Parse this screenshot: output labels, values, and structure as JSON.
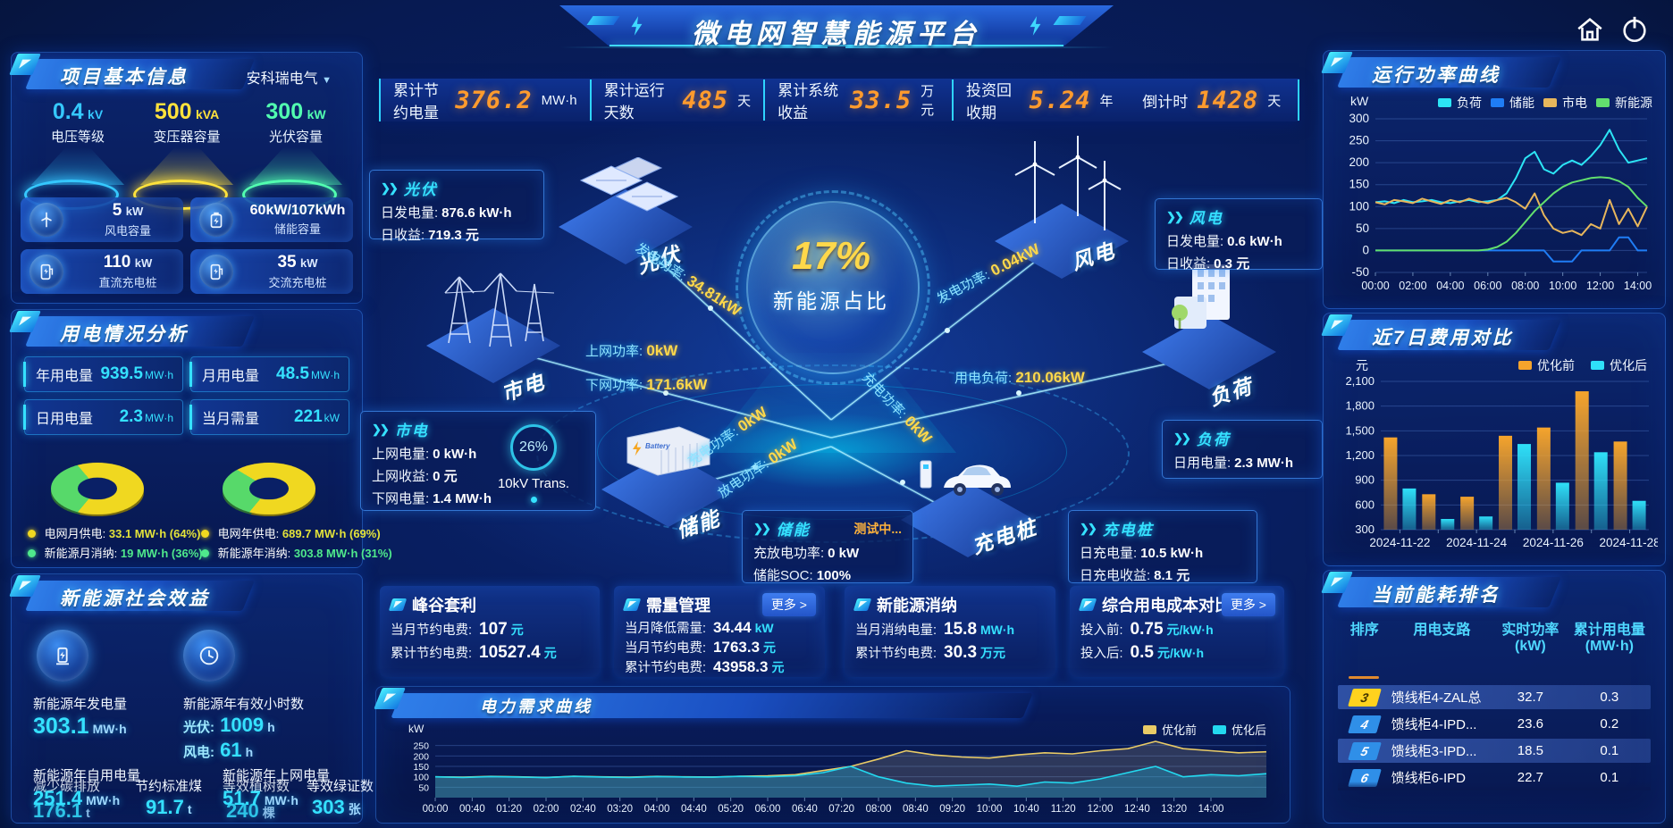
{
  "header": {
    "title": "微电网智慧能源平台"
  },
  "topbar": {
    "items": [
      {
        "label": "累计节约电量",
        "value": "376.2",
        "unit": "MW·h"
      },
      {
        "label": "累计运行天数",
        "value": "485",
        "unit": "天"
      },
      {
        "label": "累计系统收益",
        "value": "33.5",
        "unit": "万元"
      },
      {
        "label": "投资回收期",
        "value": "5.24",
        "unit": "年"
      },
      {
        "label": "倒计时",
        "value": "1428",
        "unit": "天"
      }
    ]
  },
  "project": {
    "title": "项目基本信息",
    "company": "安科瑞电气",
    "gauges": [
      {
        "value": "0.4",
        "unit": "kV",
        "label": "电压等级",
        "color": "#35c8ff"
      },
      {
        "value": "500",
        "unit": "kVA",
        "label": "变压器容量",
        "color": "#ffe23c"
      },
      {
        "value": "300",
        "unit": "kW",
        "label": "光伏容量",
        "color": "#52ffb0"
      }
    ],
    "capacities": [
      {
        "value": "5",
        "unit": "kW",
        "label": "风电容量"
      },
      {
        "value": "60kW/107kWh",
        "unit": "",
        "label": "储能容量"
      },
      {
        "value": "110",
        "unit": "kW",
        "label": "直流充电桩"
      },
      {
        "value": "35",
        "unit": "kW",
        "label": "交流充电桩"
      }
    ]
  },
  "usage": {
    "title": "用电情况分析",
    "stats": [
      {
        "label": "年用电量",
        "value": "939.5",
        "unit": "MW·h"
      },
      {
        "label": "月用电量",
        "value": "48.5",
        "unit": "MW·h"
      },
      {
        "label": "日用电量",
        "value": "2.3",
        "unit": "MW·h"
      },
      {
        "label": "当月需量",
        "value": "221",
        "unit": "kW"
      }
    ],
    "legend": [
      {
        "label": "电网月供电:",
        "value": "33.1 MW·h (64%)"
      },
      {
        "label": "新能源月消纳:",
        "value": "19 MW·h (36%)"
      },
      {
        "label": "电网年供电:",
        "value": "689.7 MW·h (69%)"
      },
      {
        "label": "新能源年消纳:",
        "value": "303.8 MW·h (31%)"
      }
    ]
  },
  "benefit": {
    "title": "新能源社会效益",
    "gen": {
      "label": "新能源年发电量",
      "value": "303.1",
      "unit": "MW·h"
    },
    "hours": {
      "label": "新能源年有效小时数",
      "pv_label": "光伏:",
      "pv_value": "1009",
      "pv_unit": "h",
      "wind_label": "风电:",
      "wind_value": "61",
      "wind_unit": "h"
    },
    "self": {
      "label": "新能源年自用电量",
      "value": "251.4",
      "unit": "MW·h"
    },
    "carbon": {
      "label": "减少碳排放",
      "value": "176.1",
      "unit": "t"
    },
    "coal": {
      "label": "节约标准煤",
      "value": "91.7",
      "unit": "t"
    },
    "feed": {
      "label": "新能源年上网电量",
      "value": "51.7",
      "unit": "MW·h"
    },
    "trees": {
      "label": "等效植树数",
      "value": "240",
      "unit": "棵"
    },
    "certs": {
      "label": "等效绿证数",
      "value": "303",
      "unit": "张"
    }
  },
  "diagram": {
    "core_percent": "17%",
    "core_label": "新能源占比",
    "nodes": {
      "pv": "光伏",
      "grid": "市电",
      "wind": "风电",
      "load": "负荷",
      "ess": "储能",
      "evc": "充电桩"
    },
    "cards": {
      "pv": {
        "title": "光伏",
        "r1_label": "日发电量:",
        "r1_value": "876.6 kW·h",
        "r2_label": "日收益:",
        "r2_value": "719.3 元"
      },
      "wind": {
        "title": "风电",
        "r1_label": "日发电量:",
        "r1_value": "0.6 kW·h",
        "r2_label": "日收益:",
        "r2_value": "0.3 元"
      },
      "grid": {
        "title": "市电",
        "r1_label": "上网电量:",
        "r1_value": "0 kW·h",
        "r2_label": "上网收益:",
        "r2_value": "0 元",
        "r3_label": "下网电量:",
        "r3_value": "1.4 MW·h",
        "trans_percent": "26%",
        "trans_label": "10kV Trans."
      },
      "load": {
        "title": "负荷",
        "r1_label": "日用电量:",
        "r1_value": "2.3 MW·h"
      },
      "ess": {
        "title": "储能",
        "badge": "测试中...",
        "r1_label": "充放电功率:",
        "r1_value": "0 kW",
        "r2_label": "储能SOC:",
        "r2_value": "100%"
      },
      "evc": {
        "title": "充电桩",
        "r1_label": "日充电量:",
        "r1_value": "10.5 kW·h",
        "r2_label": "日充电收益:",
        "r2_value": "8.1 元"
      }
    },
    "flows": {
      "pv_gen": {
        "label": "发电功率:",
        "value": "34.81kW"
      },
      "grid_up": {
        "label": "上网功率:",
        "value": "0kW"
      },
      "grid_down": {
        "label": "下网功率:",
        "value": "171.6kW"
      },
      "wind_gen": {
        "label": "发电功率:",
        "value": "0.04kW"
      },
      "load_use": {
        "label": "用电负荷:",
        "value": "210.06kW"
      },
      "ess_charge": {
        "label": "充电功率:",
        "value": "0kW"
      },
      "ess_discharge": {
        "label": "放电功率:",
        "value": "0kW"
      },
      "evc_charge": {
        "label": "充电功率:",
        "value": "0kW"
      }
    }
  },
  "cards": [
    {
      "title": "峰谷套利",
      "more": "",
      "rows": [
        {
          "label": "当月节约电费:",
          "value": "107",
          "unit": "元"
        },
        {
          "label": "累计节约电费:",
          "value": "10527.4",
          "unit": "元"
        }
      ]
    },
    {
      "title": "需量管理",
      "more": "更多 >",
      "rows": [
        {
          "label": "当月降低需量:",
          "value": "34.44",
          "unit": "kW"
        },
        {
          "label": "当月节约电费:",
          "value": "1763.3",
          "unit": "元"
        },
        {
          "label": "累计节约电费:",
          "value": "43958.3",
          "unit": "元"
        }
      ]
    },
    {
      "title": "新能源消纳",
      "more": "",
      "rows": [
        {
          "label": "当月消纳电量:",
          "value": "15.8",
          "unit": "MW·h"
        },
        {
          "label": "累计节约电费:",
          "value": "30.3",
          "unit": "万元"
        }
      ]
    },
    {
      "title": "综合用电成本对比",
      "more": "更多 >",
      "rows": [
        {
          "label": "投入前:",
          "value": "0.75",
          "unit": "元/kW·h"
        },
        {
          "label": "投入后:",
          "value": "0.5",
          "unit": "元/kW·h"
        }
      ]
    }
  ],
  "panels": {
    "run_power": "运行功率曲线",
    "cost7": "近7日费用对比",
    "ranking": "当前能耗排名",
    "demand": "电力需求曲线"
  },
  "ranking": {
    "headers": {
      "rank": "排序",
      "branch": "用电支路",
      "power_l1": "实时功率",
      "power_l2": "(kW)",
      "energy_l1": "累计用电量",
      "energy_l2": "(MW·h)"
    },
    "rows": [
      {
        "rank": "3",
        "branch": "馈线柜4-ZAL总",
        "power": "32.7",
        "energy": "0.3"
      },
      {
        "rank": "4",
        "branch": "馈线柜4-IPD...",
        "power": "23.6",
        "energy": "0.2"
      },
      {
        "rank": "5",
        "branch": "馈线柜3-IPD...",
        "power": "18.5",
        "energy": "0.1"
      },
      {
        "rank": "6",
        "branch": "馈线柜6-IPD",
        "power": "22.7",
        "energy": "0.1"
      }
    ]
  },
  "chart_data": [
    {
      "id": "run_power",
      "type": "line",
      "title": "运行功率曲线",
      "ylabel": "kW",
      "ylim": [
        -50,
        300
      ],
      "yticks": [
        300,
        250,
        200,
        150,
        100,
        50,
        0,
        -50
      ],
      "x_tick_labels": [
        "00:00",
        "02:00",
        "04:00",
        "06:00",
        "08:00",
        "10:00",
        "12:00",
        "14:00"
      ],
      "legend_position": "top",
      "grid": true,
      "series": [
        {
          "name": "负荷",
          "color": "#2ce5f5",
          "values": [
            110,
            112,
            108,
            115,
            110,
            112,
            115,
            110,
            108,
            112,
            115,
            110,
            112,
            115,
            130,
            165,
            210,
            225,
            185,
            175,
            195,
            205,
            195,
            215,
            240,
            275,
            230,
            200,
            205,
            210
          ]
        },
        {
          "name": "储能",
          "color": "#1f7df5",
          "values": [
            0,
            0,
            0,
            0,
            0,
            0,
            0,
            0,
            0,
            0,
            0,
            0,
            0,
            0,
            0,
            0,
            0,
            0,
            0,
            -25,
            -25,
            -25,
            0,
            0,
            0,
            0,
            30,
            30,
            0,
            0
          ]
        },
        {
          "name": "市电",
          "color": "#e7b65c",
          "values": [
            110,
            105,
            115,
            112,
            108,
            118,
            112,
            106,
            115,
            110,
            118,
            112,
            108,
            115,
            120,
            110,
            95,
            130,
            80,
            50,
            40,
            45,
            35,
            60,
            50,
            115,
            60,
            95,
            55,
            100
          ]
        },
        {
          "name": "新能源",
          "color": "#62df6e",
          "values": [
            0,
            0,
            0,
            0,
            0,
            0,
            0,
            0,
            0,
            0,
            0,
            0,
            2,
            8,
            20,
            40,
            65,
            90,
            110,
            130,
            145,
            155,
            160,
            165,
            167,
            165,
            158,
            145,
            120,
            100
          ]
        }
      ]
    },
    {
      "id": "cost7",
      "type": "bar",
      "title": "近7日费用对比",
      "ylabel": "元",
      "ylim": [
        300,
        2100
      ],
      "yticks": [
        2100,
        1800,
        1500,
        1200,
        900,
        600,
        300
      ],
      "categories": [
        "2024-11-22",
        "2024-11-23",
        "2024-11-24",
        "2024-11-25",
        "2024-11-26",
        "2024-11-27",
        "2024-11-28"
      ],
      "x_tick_labels": [
        "2024-11-22",
        "2024-11-24",
        "2024-11-26",
        "2024-11-28"
      ],
      "legend_position": "top",
      "grid": true,
      "series": [
        {
          "name": "优化前",
          "color": "#f5a42c",
          "values": [
            1420,
            730,
            700,
            1440,
            1540,
            1980,
            1370
          ]
        },
        {
          "name": "优化后",
          "color": "#2fe0f8",
          "values": [
            800,
            430,
            460,
            1340,
            870,
            1240,
            650
          ]
        }
      ]
    },
    {
      "id": "demand",
      "type": "line",
      "title": "电力需求曲线",
      "ylabel": "kW",
      "ylim": [
        0,
        300
      ],
      "yticks": [
        250,
        200,
        150,
        100,
        50
      ],
      "x_tick_labels": [
        "00:00",
        "00:40",
        "01:20",
        "02:00",
        "02:40",
        "03:20",
        "04:00",
        "04:40",
        "05:20",
        "06:00",
        "06:40",
        "07:20",
        "08:00",
        "08:40",
        "09:20",
        "10:00",
        "10:40",
        "11:20",
        "12:00",
        "12:40",
        "13:20",
        "14:00"
      ],
      "legend_position": "top-right",
      "grid": true,
      "series": [
        {
          "name": "优化前",
          "color": "#e9cb66",
          "area": "rgba(180,170,130,0.22)",
          "values": [
            100,
            98,
            102,
            100,
            97,
            103,
            100,
            98,
            102,
            100,
            99,
            103,
            105,
            110,
            130,
            150,
            185,
            225,
            205,
            195,
            190,
            205,
            215,
            210,
            225,
            235,
            270,
            235,
            225,
            215,
            220
          ]
        },
        {
          "name": "优化后",
          "color": "#23d9ef",
          "area": "rgba(30,190,230,0.30)",
          "values": [
            100,
            97,
            101,
            99,
            96,
            102,
            99,
            97,
            101,
            99,
            98,
            102,
            100,
            105,
            120,
            150,
            100,
            70,
            55,
            60,
            65,
            55,
            75,
            70,
            90,
            120,
            150,
            100,
            110,
            105,
            115
          ]
        }
      ]
    },
    {
      "id": "donut_month",
      "type": "pie",
      "slices": [
        {
          "label": "电网月供电",
          "value": 64,
          "color": "#f0d820"
        },
        {
          "label": "新能源月消纳",
          "value": 36,
          "color": "#57d96a"
        }
      ]
    },
    {
      "id": "donut_year",
      "type": "pie",
      "slices": [
        {
          "label": "电网年供电",
          "value": 69,
          "color": "#f0d820"
        },
        {
          "label": "新能源年消纳",
          "value": 31,
          "color": "#57d96a"
        }
      ]
    }
  ]
}
